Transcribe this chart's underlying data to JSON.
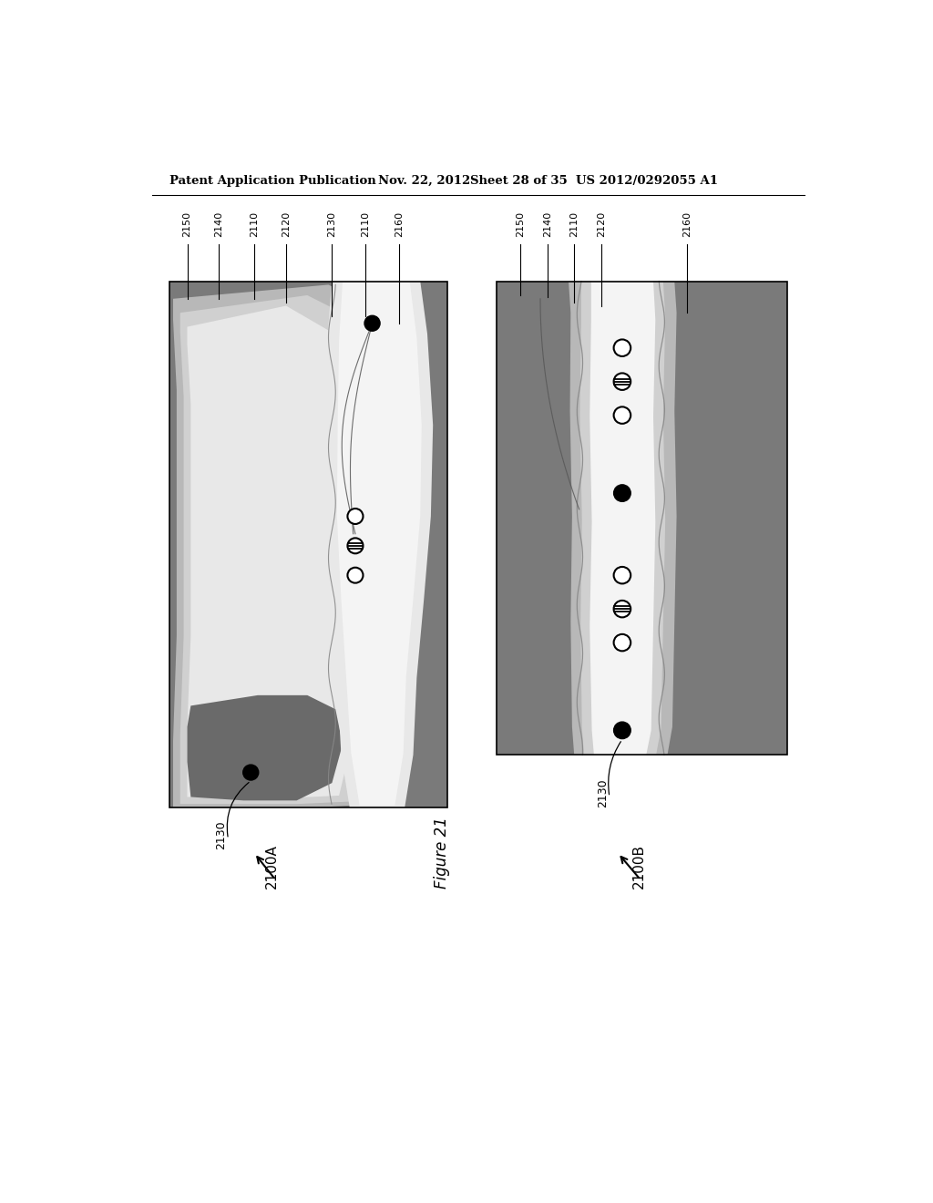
{
  "bg_color": "#ffffff",
  "header_text": "Patent Application Publication",
  "header_date": "Nov. 22, 2012",
  "header_sheet": "Sheet 28 of 35",
  "header_patent": "US 2012/0292055 A1",
  "figure_label": "Figure 21",
  "left_label": "2100A",
  "right_label": "2100B",
  "col_dark": "#7a7a7a",
  "col_mid_dark": "#909090",
  "col_light_gray": "#b8b8b8",
  "col_lighter": "#d0d0d0",
  "col_very_light": "#e8e8e8",
  "col_white": "#f4f4f4",
  "col_dark_blob": "#6a6a6a",
  "left_labels": [
    [
      "2150",
      100
    ],
    [
      "2140",
      145
    ],
    [
      "2110",
      195
    ],
    [
      "2120",
      240
    ],
    [
      "2130",
      305
    ],
    [
      "2110",
      352
    ],
    [
      "2160",
      400
    ]
  ],
  "right_labels": [
    [
      "2150",
      572
    ],
    [
      "2140",
      610
    ],
    [
      "2110",
      648
    ],
    [
      "2120",
      686
    ],
    [
      "2160",
      808
    ]
  ]
}
